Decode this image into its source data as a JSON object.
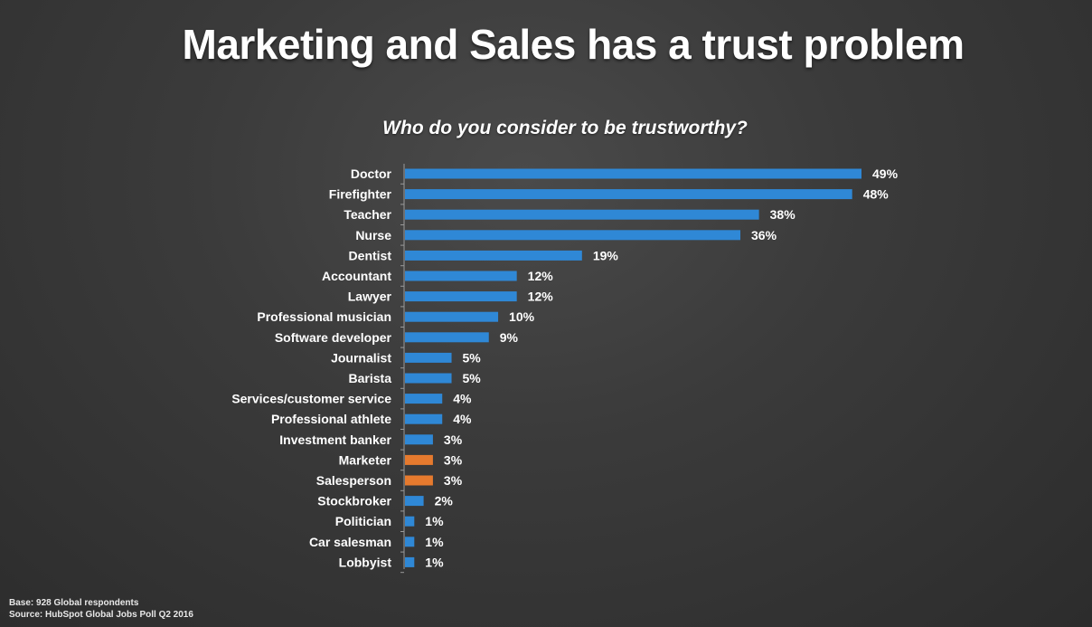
{
  "slide": {
    "title": "Marketing and Sales has a trust problem"
  },
  "chart_data": {
    "type": "bar",
    "orientation": "horizontal",
    "subtitle": "Who do you consider to be trustworthy?",
    "categories": [
      "Doctor",
      "Firefighter",
      "Teacher",
      "Nurse",
      "Dentist",
      "Accountant",
      "Lawyer",
      "Professional musician",
      "Software developer",
      "Journalist",
      "Barista",
      "Services/customer service",
      "Professional athlete",
      "Investment banker",
      "Marketer",
      "Salesperson",
      "Stockbroker",
      "Politician",
      "Car salesman",
      "Lobbyist"
    ],
    "values": [
      49,
      48,
      38,
      36,
      19,
      12,
      12,
      10,
      9,
      5,
      5,
      4,
      4,
      3,
      3,
      3,
      2,
      1,
      1,
      1
    ],
    "value_labels": [
      "49%",
      "48%",
      "38%",
      "36%",
      "19%",
      "12%",
      "12%",
      "10%",
      "9%",
      "5%",
      "5%",
      "4%",
      "4%",
      "3%",
      "3%",
      "3%",
      "2%",
      "1%",
      "1%",
      "1%"
    ],
    "highlighted_categories": [
      "Marketer",
      "Salesperson"
    ],
    "colors": {
      "bar": "#2f88d6",
      "highlight": "#e67a2e",
      "axis": "#9a9a9a"
    },
    "xlim": [
      0,
      50
    ],
    "grid": false
  },
  "footnotes": {
    "base": "Base: 928 Global respondents",
    "source": "Source: HubSpot Global Jobs Poll Q2 2016"
  }
}
